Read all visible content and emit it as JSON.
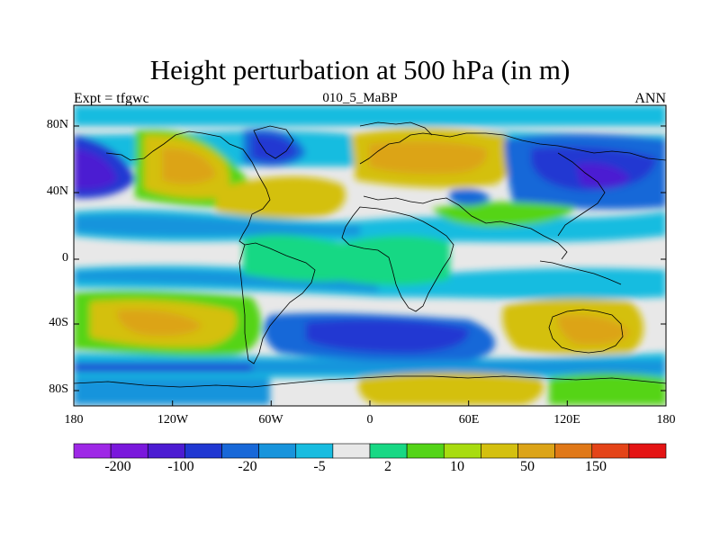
{
  "header": {
    "title": "Height perturbation at 500 hPa (in m)",
    "left_label": "Expt = tfgwc",
    "center_label": "010_5_MaBP",
    "right_label": "ANN"
  },
  "axes": {
    "y_ticks": [
      "80N",
      "40N",
      "0",
      "40S",
      "80S"
    ],
    "x_ticks": [
      "180",
      "120W",
      "60W",
      "0",
      "60E",
      "120E",
      "180"
    ]
  },
  "colorbar": {
    "colors": [
      "#9e28e6",
      "#7a18dc",
      "#4c1cd2",
      "#2038d2",
      "#1868d8",
      "#1894dc",
      "#18bce0",
      "#e8e8e8",
      "#18d884",
      "#54d418",
      "#a8dc10",
      "#d4c010",
      "#dca418",
      "#e07818",
      "#e44418",
      "#e41414"
    ],
    "labels": [
      "-200",
      "-100",
      "-20",
      "-5",
      "2",
      "10",
      "50",
      "150"
    ]
  },
  "colors": {
    "neutral": "#e8e8e8",
    "deep_negative": "#2038d2",
    "negative": "#1894dc",
    "weak_negative": "#18bce0",
    "weak_positive": "#18d884",
    "positive": "#54d418",
    "strong_positive": "#d4c010",
    "peak_positive": "#dca418"
  }
}
